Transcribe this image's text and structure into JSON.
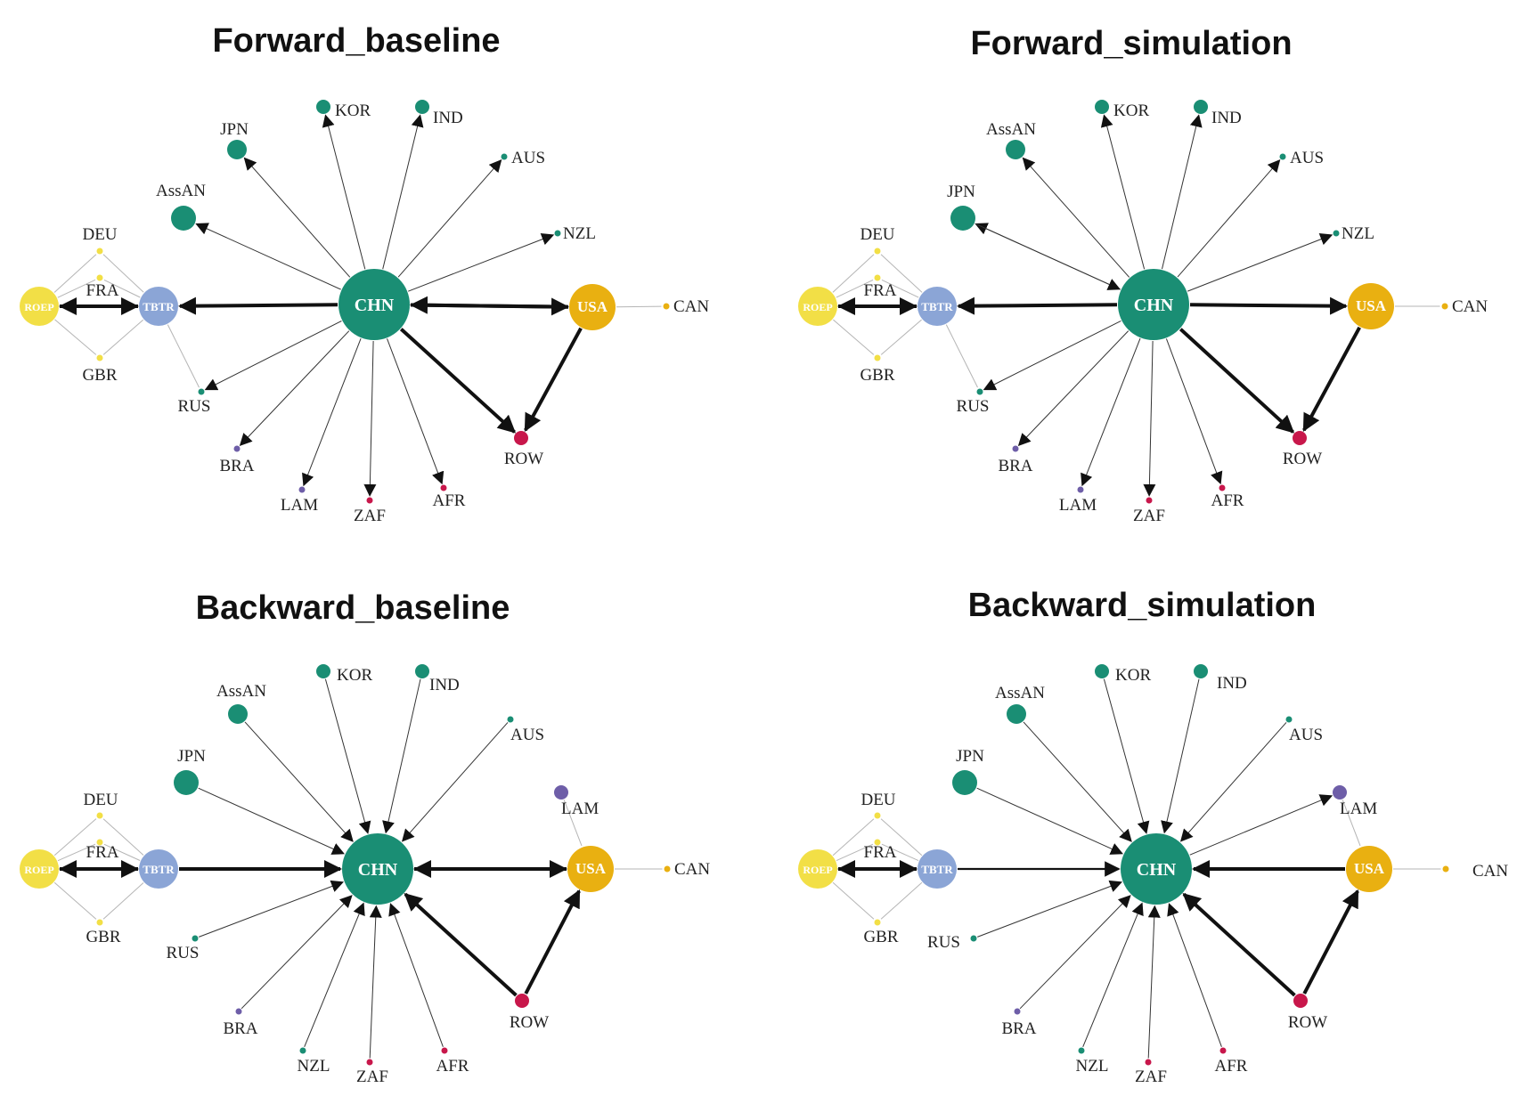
{
  "colors": {
    "china": "#1a8e74",
    "usa": "#e9b011",
    "europe": "#f2df46",
    "tbtr": "#8ba5d6",
    "row": "#c8174b",
    "purple": "#6e5ea8",
    "edge": "#111111",
    "thin_edge": "#b5b5b5"
  },
  "panels": [
    {
      "title": "Forward_baseline",
      "nodes": [
        {
          "id": "CHN",
          "label": "CHN",
          "color": "china",
          "size": "xl"
        },
        {
          "id": "USA",
          "label": "USA",
          "color": "usa",
          "size": "l"
        },
        {
          "id": "TBTR",
          "label": "TBTR",
          "color": "tbtr",
          "size": "m"
        },
        {
          "id": "ROEP",
          "label": "ROEP",
          "color": "europe",
          "size": "m"
        },
        {
          "id": "DEU",
          "label": "DEU",
          "color": "europe",
          "size": "xs"
        },
        {
          "id": "FRA",
          "label": "FRA",
          "color": "europe",
          "size": "xs"
        },
        {
          "id": "GBR",
          "label": "GBR",
          "color": "europe",
          "size": "xs"
        },
        {
          "id": "RUS",
          "label": "RUS",
          "color": "china",
          "size": "xs"
        },
        {
          "id": "BRA",
          "label": "BRA",
          "color": "purple",
          "size": "xs"
        },
        {
          "id": "LAM",
          "label": "LAM",
          "color": "purple",
          "size": "xs"
        },
        {
          "id": "ZAF",
          "label": "ZAF",
          "color": "row",
          "size": "xs"
        },
        {
          "id": "AFR",
          "label": "AFR",
          "color": "row",
          "size": "xs"
        },
        {
          "id": "ROW",
          "label": "ROW",
          "color": "row",
          "size": "s"
        },
        {
          "id": "CAN",
          "label": "CAN",
          "color": "usa",
          "size": "xs"
        },
        {
          "id": "NZL",
          "label": "NZL",
          "color": "china",
          "size": "xs"
        },
        {
          "id": "AUS",
          "label": "AUS",
          "color": "china",
          "size": "xs"
        },
        {
          "id": "IND",
          "label": "IND",
          "color": "china",
          "size": "s"
        },
        {
          "id": "KOR",
          "label": "KOR",
          "color": "china",
          "size": "s"
        },
        {
          "id": "JPN",
          "label": "JPN",
          "color": "china",
          "size": "ms"
        },
        {
          "id": "AssAN",
          "label": "AssAN",
          "color": "china",
          "size": "m2"
        }
      ],
      "edges": [
        {
          "from": "CHN",
          "to": "TBTR",
          "weight": 3
        },
        {
          "from": "CHN",
          "to": "USA",
          "weight": 3
        },
        {
          "from": "USA",
          "to": "CHN",
          "weight": 3
        },
        {
          "from": "CHN",
          "to": "ROW",
          "weight": 3
        },
        {
          "from": "USA",
          "to": "ROW",
          "weight": 3
        },
        {
          "from": "TBTR",
          "to": "ROEP",
          "weight": 3
        },
        {
          "from": "ROEP",
          "to": "TBTR",
          "weight": 3
        },
        {
          "from": "CHN",
          "to": "JPN",
          "weight": 1
        },
        {
          "from": "CHN",
          "to": "KOR",
          "weight": 1
        },
        {
          "from": "CHN",
          "to": "IND",
          "weight": 1
        },
        {
          "from": "CHN",
          "to": "AUS",
          "weight": 1
        },
        {
          "from": "CHN",
          "to": "NZL",
          "weight": 1
        },
        {
          "from": "CHN",
          "to": "AssAN",
          "weight": 1
        },
        {
          "from": "CHN",
          "to": "RUS",
          "weight": 1
        },
        {
          "from": "CHN",
          "to": "BRA",
          "weight": 1
        },
        {
          "from": "CHN",
          "to": "LAM",
          "weight": 1
        },
        {
          "from": "CHN",
          "to": "ZAF",
          "weight": 1
        },
        {
          "from": "CHN",
          "to": "AFR",
          "weight": 1
        },
        {
          "from": "TBTR",
          "to": "RUS",
          "weight": 0
        },
        {
          "from": "USA",
          "to": "CAN",
          "weight": 0
        },
        {
          "from": "ROEP",
          "to": "DEU",
          "weight": 0
        },
        {
          "from": "ROEP",
          "to": "FRA",
          "weight": 0
        },
        {
          "from": "ROEP",
          "to": "GBR",
          "weight": 0
        },
        {
          "from": "TBTR",
          "to": "DEU",
          "weight": 0
        },
        {
          "from": "TBTR",
          "to": "FRA",
          "weight": 0
        },
        {
          "from": "TBTR",
          "to": "GBR",
          "weight": 0
        }
      ]
    },
    {
      "title": "Forward_simulation",
      "nodes": [
        {
          "id": "CHN",
          "label": "CHN",
          "color": "china",
          "size": "xl"
        },
        {
          "id": "USA",
          "label": "USA",
          "color": "usa",
          "size": "l"
        },
        {
          "id": "TBTR",
          "label": "TBTR",
          "color": "tbtr",
          "size": "m"
        },
        {
          "id": "ROEP",
          "label": "ROEP",
          "color": "europe",
          "size": "m"
        },
        {
          "id": "DEU",
          "label": "DEU",
          "color": "europe",
          "size": "xs"
        },
        {
          "id": "FRA",
          "label": "FRA",
          "color": "europe",
          "size": "xs"
        },
        {
          "id": "GBR",
          "label": "GBR",
          "color": "europe",
          "size": "xs"
        },
        {
          "id": "RUS",
          "label": "RUS",
          "color": "china",
          "size": "xs"
        },
        {
          "id": "BRA",
          "label": "BRA",
          "color": "purple",
          "size": "xs"
        },
        {
          "id": "LAM",
          "label": "LAM",
          "color": "purple",
          "size": "xs"
        },
        {
          "id": "ZAF",
          "label": "ZAF",
          "color": "row",
          "size": "xs"
        },
        {
          "id": "AFR",
          "label": "AFR",
          "color": "row",
          "size": "xs"
        },
        {
          "id": "ROW",
          "label": "ROW",
          "color": "row",
          "size": "s"
        },
        {
          "id": "CAN",
          "label": "CAN",
          "color": "usa",
          "size": "xs"
        },
        {
          "id": "NZL",
          "label": "NZL",
          "color": "china",
          "size": "xs"
        },
        {
          "id": "AUS",
          "label": "AUS",
          "color": "china",
          "size": "xs"
        },
        {
          "id": "IND",
          "label": "IND",
          "color": "china",
          "size": "s"
        },
        {
          "id": "KOR",
          "label": "KOR",
          "color": "china",
          "size": "s"
        },
        {
          "id": "AssAN",
          "label": "AssAN",
          "color": "china",
          "size": "ms"
        },
        {
          "id": "JPN",
          "label": "JPN",
          "color": "china",
          "size": "m2"
        }
      ],
      "edges": [
        {
          "from": "CHN",
          "to": "TBTR",
          "weight": 3
        },
        {
          "from": "CHN",
          "to": "USA",
          "weight": 3
        },
        {
          "from": "CHN",
          "to": "ROW",
          "weight": 3
        },
        {
          "from": "USA",
          "to": "ROW",
          "weight": 3
        },
        {
          "from": "TBTR",
          "to": "ROEP",
          "weight": 3
        },
        {
          "from": "ROEP",
          "to": "TBTR",
          "weight": 3
        },
        {
          "from": "CHN",
          "to": "JPN",
          "weight": 1
        },
        {
          "from": "JPN",
          "to": "CHN",
          "weight": 1
        },
        {
          "from": "CHN",
          "to": "KOR",
          "weight": 1
        },
        {
          "from": "CHN",
          "to": "IND",
          "weight": 1
        },
        {
          "from": "CHN",
          "to": "AUS",
          "weight": 1
        },
        {
          "from": "CHN",
          "to": "NZL",
          "weight": 1
        },
        {
          "from": "CHN",
          "to": "AssAN",
          "weight": 1
        },
        {
          "from": "CHN",
          "to": "RUS",
          "weight": 1
        },
        {
          "from": "CHN",
          "to": "BRA",
          "weight": 1
        },
        {
          "from": "CHN",
          "to": "LAM",
          "weight": 1
        },
        {
          "from": "CHN",
          "to": "ZAF",
          "weight": 1
        },
        {
          "from": "CHN",
          "to": "AFR",
          "weight": 1
        },
        {
          "from": "TBTR",
          "to": "RUS",
          "weight": 0
        },
        {
          "from": "USA",
          "to": "CAN",
          "weight": 0
        },
        {
          "from": "ROEP",
          "to": "DEU",
          "weight": 0
        },
        {
          "from": "ROEP",
          "to": "FRA",
          "weight": 0
        },
        {
          "from": "ROEP",
          "to": "GBR",
          "weight": 0
        },
        {
          "from": "TBTR",
          "to": "DEU",
          "weight": 0
        },
        {
          "from": "TBTR",
          "to": "FRA",
          "weight": 0
        },
        {
          "from": "TBTR",
          "to": "GBR",
          "weight": 0
        }
      ]
    },
    {
      "title": "Backward_baseline",
      "nodes": [
        {
          "id": "CHN",
          "label": "CHN",
          "color": "china",
          "size": "xl"
        },
        {
          "id": "USA",
          "label": "USA",
          "color": "usa",
          "size": "l"
        },
        {
          "id": "TBTR",
          "label": "TBTR",
          "color": "tbtr",
          "size": "m"
        },
        {
          "id": "ROEP",
          "label": "ROEP",
          "color": "europe",
          "size": "m"
        },
        {
          "id": "DEU",
          "label": "DEU",
          "color": "europe",
          "size": "xs"
        },
        {
          "id": "FRA",
          "label": "FRA",
          "color": "europe",
          "size": "xs"
        },
        {
          "id": "GBR",
          "label": "GBR",
          "color": "europe",
          "size": "xs"
        },
        {
          "id": "RUS",
          "label": "RUS",
          "color": "china",
          "size": "xs"
        },
        {
          "id": "BRA",
          "label": "BRA",
          "color": "purple",
          "size": "xs"
        },
        {
          "id": "NZL",
          "label": "NZL",
          "color": "china",
          "size": "xs"
        },
        {
          "id": "ZAF",
          "label": "ZAF",
          "color": "row",
          "size": "xs"
        },
        {
          "id": "AFR",
          "label": "AFR",
          "color": "row",
          "size": "xs"
        },
        {
          "id": "ROW",
          "label": "ROW",
          "color": "row",
          "size": "s"
        },
        {
          "id": "CAN",
          "label": "CAN",
          "color": "usa",
          "size": "xs"
        },
        {
          "id": "LAM",
          "label": "LAM",
          "color": "purple",
          "size": "s"
        },
        {
          "id": "AUS",
          "label": "AUS",
          "color": "china",
          "size": "xs"
        },
        {
          "id": "IND",
          "label": "IND",
          "color": "china",
          "size": "s"
        },
        {
          "id": "KOR",
          "label": "KOR",
          "color": "china",
          "size": "s"
        },
        {
          "id": "AssAN",
          "label": "AssAN",
          "color": "china",
          "size": "ms"
        },
        {
          "id": "JPN",
          "label": "JPN",
          "color": "china",
          "size": "m2"
        }
      ],
      "edges": [
        {
          "from": "TBTR",
          "to": "CHN",
          "weight": 3
        },
        {
          "from": "USA",
          "to": "CHN",
          "weight": 3
        },
        {
          "from": "CHN",
          "to": "USA",
          "weight": 3
        },
        {
          "from": "ROW",
          "to": "CHN",
          "weight": 3
        },
        {
          "from": "ROW",
          "to": "USA",
          "weight": 3
        },
        {
          "from": "TBTR",
          "to": "ROEP",
          "weight": 3
        },
        {
          "from": "ROEP",
          "to": "TBTR",
          "weight": 3
        },
        {
          "from": "JPN",
          "to": "CHN",
          "weight": 1
        },
        {
          "from": "AssAN",
          "to": "CHN",
          "weight": 1
        },
        {
          "from": "KOR",
          "to": "CHN",
          "weight": 1
        },
        {
          "from": "IND",
          "to": "CHN",
          "weight": 1
        },
        {
          "from": "AUS",
          "to": "CHN",
          "weight": 1
        },
        {
          "from": "RUS",
          "to": "CHN",
          "weight": 1
        },
        {
          "from": "BRA",
          "to": "CHN",
          "weight": 1
        },
        {
          "from": "NZL",
          "to": "CHN",
          "weight": 1
        },
        {
          "from": "ZAF",
          "to": "CHN",
          "weight": 1
        },
        {
          "from": "AFR",
          "to": "CHN",
          "weight": 1
        },
        {
          "from": "LAM",
          "to": "USA",
          "weight": 0
        },
        {
          "from": "USA",
          "to": "CAN",
          "weight": 0
        },
        {
          "from": "ROEP",
          "to": "DEU",
          "weight": 0
        },
        {
          "from": "ROEP",
          "to": "FRA",
          "weight": 0
        },
        {
          "from": "ROEP",
          "to": "GBR",
          "weight": 0
        },
        {
          "from": "TBTR",
          "to": "DEU",
          "weight": 0
        },
        {
          "from": "TBTR",
          "to": "FRA",
          "weight": 0
        },
        {
          "from": "TBTR",
          "to": "GBR",
          "weight": 0
        }
      ]
    },
    {
      "title": "Backward_simulation",
      "nodes": [
        {
          "id": "CHN",
          "label": "CHN",
          "color": "china",
          "size": "xl"
        },
        {
          "id": "USA",
          "label": "USA",
          "color": "usa",
          "size": "l"
        },
        {
          "id": "TBTR",
          "label": "TBTR",
          "color": "tbtr",
          "size": "m"
        },
        {
          "id": "ROEP",
          "label": "ROEP",
          "color": "europe",
          "size": "m"
        },
        {
          "id": "DEU",
          "label": "DEU",
          "color": "europe",
          "size": "xs"
        },
        {
          "id": "FRA",
          "label": "FRA",
          "color": "europe",
          "size": "xs"
        },
        {
          "id": "GBR",
          "label": "GBR",
          "color": "europe",
          "size": "xs"
        },
        {
          "id": "RUS",
          "label": "RUS",
          "color": "china",
          "size": "xs"
        },
        {
          "id": "BRA",
          "label": "BRA",
          "color": "purple",
          "size": "xs"
        },
        {
          "id": "NZL",
          "label": "NZL",
          "color": "china",
          "size": "xs"
        },
        {
          "id": "ZAF",
          "label": "ZAF",
          "color": "row",
          "size": "xs"
        },
        {
          "id": "AFR",
          "label": "AFR",
          "color": "row",
          "size": "xs"
        },
        {
          "id": "ROW",
          "label": "ROW",
          "color": "row",
          "size": "s"
        },
        {
          "id": "CAN",
          "label": "CAN",
          "color": "usa",
          "size": "xs"
        },
        {
          "id": "LAM",
          "label": "LAM",
          "color": "purple",
          "size": "s"
        },
        {
          "id": "AUS",
          "label": "AUS",
          "color": "china",
          "size": "xs"
        },
        {
          "id": "IND",
          "label": "IND",
          "color": "china",
          "size": "s"
        },
        {
          "id": "KOR",
          "label": "KOR",
          "color": "china",
          "size": "s"
        },
        {
          "id": "AssAN",
          "label": "AssAN",
          "color": "china",
          "size": "ms"
        },
        {
          "id": "JPN",
          "label": "JPN",
          "color": "china",
          "size": "m2"
        }
      ],
      "edges": [
        {
          "from": "TBTR",
          "to": "CHN",
          "weight": 2
        },
        {
          "from": "USA",
          "to": "CHN",
          "weight": 3
        },
        {
          "from": "ROW",
          "to": "CHN",
          "weight": 3
        },
        {
          "from": "ROW",
          "to": "USA",
          "weight": 3
        },
        {
          "from": "TBTR",
          "to": "ROEP",
          "weight": 3
        },
        {
          "from": "ROEP",
          "to": "TBTR",
          "weight": 3
        },
        {
          "from": "CHN",
          "to": "LAM",
          "weight": 1
        },
        {
          "from": "JPN",
          "to": "CHN",
          "weight": 1
        },
        {
          "from": "AssAN",
          "to": "CHN",
          "weight": 1
        },
        {
          "from": "KOR",
          "to": "CHN",
          "weight": 1
        },
        {
          "from": "IND",
          "to": "CHN",
          "weight": 1
        },
        {
          "from": "AUS",
          "to": "CHN",
          "weight": 1
        },
        {
          "from": "RUS",
          "to": "CHN",
          "weight": 1
        },
        {
          "from": "BRA",
          "to": "CHN",
          "weight": 1
        },
        {
          "from": "NZL",
          "to": "CHN",
          "weight": 1
        },
        {
          "from": "ZAF",
          "to": "CHN",
          "weight": 1
        },
        {
          "from": "AFR",
          "to": "CHN",
          "weight": 1
        },
        {
          "from": "LAM",
          "to": "USA",
          "weight": 0
        },
        {
          "from": "USA",
          "to": "CAN",
          "weight": 0
        },
        {
          "from": "ROEP",
          "to": "DEU",
          "weight": 0
        },
        {
          "from": "ROEP",
          "to": "FRA",
          "weight": 0
        },
        {
          "from": "ROEP",
          "to": "GBR",
          "weight": 0
        },
        {
          "from": "TBTR",
          "to": "DEU",
          "weight": 0
        },
        {
          "from": "TBTR",
          "to": "FRA",
          "weight": 0
        },
        {
          "from": "TBTR",
          "to": "GBR",
          "weight": 0
        }
      ]
    }
  ]
}
